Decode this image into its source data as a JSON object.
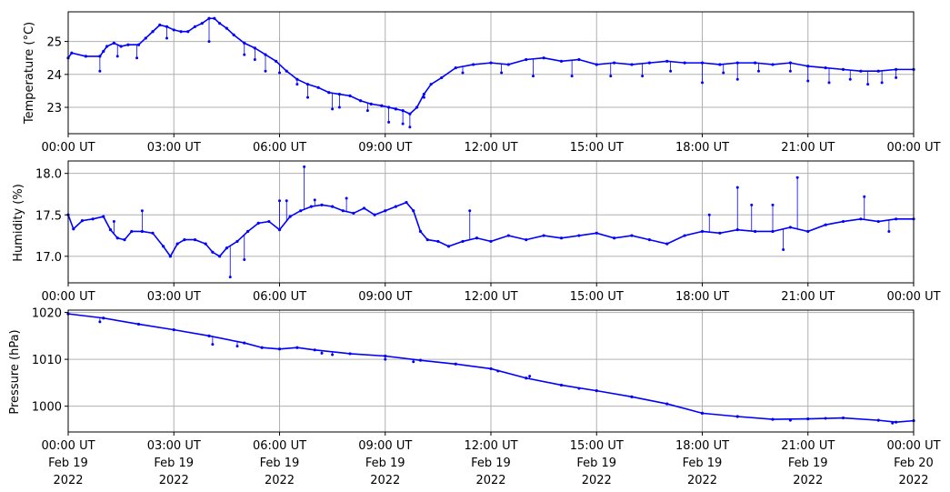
{
  "chart_data": [
    {
      "type": "line",
      "ylabel": "Temperature (°C)",
      "xlabel": "",
      "ylim": [
        22.2,
        25.9
      ],
      "yticks": [
        23,
        24,
        25
      ],
      "grid": true,
      "line_color": "#0000ff",
      "marker": "dot",
      "x_unit": "hours since 00:00 UT Feb 19 2022",
      "xticks": [
        0,
        3,
        6,
        9,
        12,
        15,
        18,
        21,
        24
      ],
      "xtick_labels": [
        "00:00 UT",
        "03:00 UT",
        "06:00 UT",
        "09:00 UT",
        "12:00 UT",
        "15:00 UT",
        "18:00 UT",
        "21:00 UT",
        "00:00 UT"
      ],
      "series": [
        {
          "x": [
            0,
            0.1,
            0.5,
            0.9,
            1.0,
            1.1,
            1.3,
            1.5,
            1.7,
            2.0,
            2.2,
            2.4,
            2.6,
            2.8,
            3.0,
            3.2,
            3.4,
            3.6,
            3.8,
            4.0,
            4.15,
            4.3,
            4.5,
            4.7,
            5.0,
            5.3,
            5.6,
            5.9,
            6.2,
            6.5,
            6.8,
            7.1,
            7.4,
            7.7,
            8.0,
            8.3,
            8.6,
            8.9,
            9.1,
            9.3,
            9.5,
            9.7,
            9.9,
            10.1,
            10.3,
            10.6,
            11.0,
            11.5,
            12.0,
            12.5,
            13.0,
            13.5,
            14.0,
            14.5,
            15.0,
            15.5,
            16.0,
            16.5,
            17.0,
            17.5,
            18.0,
            18.5,
            19.0,
            19.5,
            20.0,
            20.5,
            21.0,
            21.5,
            22.0,
            22.5,
            23.0,
            23.5,
            24.0
          ],
          "y": [
            24.5,
            24.65,
            24.55,
            24.55,
            24.7,
            24.85,
            24.95,
            24.85,
            24.9,
            24.9,
            25.1,
            25.3,
            25.5,
            25.45,
            25.35,
            25.3,
            25.3,
            25.45,
            25.55,
            25.7,
            25.7,
            25.55,
            25.4,
            25.2,
            24.95,
            24.8,
            24.6,
            24.4,
            24.1,
            23.85,
            23.7,
            23.6,
            23.45,
            23.4,
            23.35,
            23.2,
            23.1,
            23.05,
            23.0,
            22.95,
            22.9,
            22.8,
            23.0,
            23.4,
            23.7,
            23.9,
            24.2,
            24.3,
            24.35,
            24.3,
            24.45,
            24.5,
            24.4,
            24.45,
            24.3,
            24.35,
            24.3,
            24.35,
            24.4,
            24.35,
            24.35,
            24.3,
            24.35,
            24.35,
            24.3,
            24.35,
            24.25,
            24.2,
            24.15,
            24.1,
            24.1,
            24.15,
            24.15
          ]
        }
      ],
      "spikes": [
        [
          0.9,
          24.1
        ],
        [
          1.4,
          24.55
        ],
        [
          1.95,
          24.5
        ],
        [
          2.8,
          25.1
        ],
        [
          4.0,
          25.0
        ],
        [
          5.0,
          24.6
        ],
        [
          5.3,
          24.45
        ],
        [
          5.6,
          24.1
        ],
        [
          6.0,
          24.05
        ],
        [
          6.5,
          23.7
        ],
        [
          6.8,
          23.3
        ],
        [
          7.5,
          22.95
        ],
        [
          7.7,
          23.0
        ],
        [
          8.5,
          22.9
        ],
        [
          9.1,
          22.55
        ],
        [
          9.5,
          22.5
        ],
        [
          9.7,
          22.4
        ],
        [
          10.1,
          23.3
        ],
        [
          11.2,
          24.05
        ],
        [
          12.3,
          24.05
        ],
        [
          13.2,
          23.95
        ],
        [
          14.3,
          23.95
        ],
        [
          15.4,
          23.95
        ],
        [
          16.3,
          23.95
        ],
        [
          17.1,
          24.1
        ],
        [
          18.0,
          23.75
        ],
        [
          18.6,
          24.05
        ],
        [
          19.0,
          23.85
        ],
        [
          19.6,
          24.1
        ],
        [
          20.5,
          24.1
        ],
        [
          21.0,
          23.8
        ],
        [
          21.6,
          23.75
        ],
        [
          22.2,
          23.85
        ],
        [
          22.7,
          23.7
        ],
        [
          23.1,
          23.75
        ],
        [
          23.5,
          23.9
        ]
      ]
    },
    {
      "type": "line",
      "ylabel": "Humidity (%)",
      "xlabel": "",
      "ylim": [
        16.68,
        18.15
      ],
      "yticks": [
        17.0,
        17.5,
        18.0
      ],
      "ytick_labels": [
        "17.0",
        "17.5",
        "18.0"
      ],
      "grid": true,
      "line_color": "#0000ff",
      "marker": "dot",
      "xticks": [
        0,
        3,
        6,
        9,
        12,
        15,
        18,
        21,
        24
      ],
      "xtick_labels": [
        "00:00 UT",
        "03:00 UT",
        "06:00 UT",
        "09:00 UT",
        "12:00 UT",
        "15:00 UT",
        "18:00 UT",
        "21:00 UT",
        "00:00 UT"
      ],
      "series": [
        {
          "x": [
            0,
            0.15,
            0.4,
            0.7,
            1.0,
            1.2,
            1.4,
            1.6,
            1.8,
            2.1,
            2.4,
            2.7,
            2.9,
            3.1,
            3.3,
            3.6,
            3.9,
            4.1,
            4.3,
            4.5,
            4.8,
            5.1,
            5.4,
            5.7,
            6.0,
            6.3,
            6.6,
            6.9,
            7.2,
            7.5,
            7.8,
            8.1,
            8.4,
            8.7,
            9.0,
            9.3,
            9.6,
            9.8,
            10.0,
            10.2,
            10.5,
            10.8,
            11.2,
            11.6,
            12.0,
            12.5,
            13.0,
            13.5,
            14.0,
            14.5,
            15.0,
            15.5,
            16.0,
            16.5,
            17.0,
            17.5,
            18.0,
            18.5,
            19.0,
            19.5,
            20.0,
            20.5,
            21.0,
            21.5,
            22.0,
            22.5,
            23.0,
            23.5,
            24.0
          ],
          "y": [
            17.5,
            17.33,
            17.43,
            17.45,
            17.48,
            17.32,
            17.22,
            17.2,
            17.3,
            17.3,
            17.28,
            17.12,
            17.0,
            17.15,
            17.2,
            17.2,
            17.15,
            17.05,
            17.0,
            17.1,
            17.18,
            17.3,
            17.4,
            17.42,
            17.32,
            17.48,
            17.55,
            17.6,
            17.62,
            17.6,
            17.55,
            17.52,
            17.58,
            17.5,
            17.55,
            17.6,
            17.65,
            17.55,
            17.3,
            17.2,
            17.18,
            17.12,
            17.18,
            17.22,
            17.18,
            17.25,
            17.2,
            17.25,
            17.22,
            17.25,
            17.28,
            17.22,
            17.25,
            17.2,
            17.15,
            17.25,
            17.3,
            17.28,
            17.32,
            17.3,
            17.3,
            17.35,
            17.3,
            17.38,
            17.42,
            17.45,
            17.42,
            17.45,
            17.45
          ]
        }
      ],
      "spikes": [
        [
          1.3,
          17.42
        ],
        [
          2.1,
          17.55
        ],
        [
          4.6,
          16.75
        ],
        [
          5.0,
          16.96
        ],
        [
          6.0,
          17.67
        ],
        [
          6.2,
          17.67
        ],
        [
          6.7,
          18.08
        ],
        [
          7.0,
          17.68
        ],
        [
          7.9,
          17.7
        ],
        [
          11.4,
          17.55
        ],
        [
          18.2,
          17.5
        ],
        [
          19.0,
          17.83
        ],
        [
          19.4,
          17.62
        ],
        [
          20.0,
          17.62
        ],
        [
          20.3,
          17.08
        ],
        [
          20.7,
          17.95
        ],
        [
          22.6,
          17.72
        ],
        [
          23.3,
          17.3
        ]
      ]
    },
    {
      "type": "line",
      "ylabel": "Pressure (hPa)",
      "xlabel": "",
      "ylim": [
        994.5,
        1020.5
      ],
      "yticks": [
        1000,
        1010,
        1020
      ],
      "grid": true,
      "line_color": "#0000ff",
      "marker": "dot",
      "xticks": [
        0,
        3,
        6,
        9,
        12,
        15,
        18,
        21,
        24
      ],
      "xtick_labels": [
        [
          "00:00 UT",
          "Feb 19",
          "2022"
        ],
        [
          "03:00 UT",
          "Feb 19",
          "2022"
        ],
        [
          "06:00 UT",
          "Feb 19",
          "2022"
        ],
        [
          "09:00 UT",
          "Feb 19",
          "2022"
        ],
        [
          "12:00 UT",
          "Feb 19",
          "2022"
        ],
        [
          "15:00 UT",
          "Feb 19",
          "2022"
        ],
        [
          "18:00 UT",
          "Feb 19",
          "2022"
        ],
        [
          "21:00 UT",
          "Feb 19",
          "2022"
        ],
        [
          "00:00 UT",
          "Feb 20",
          "2022"
        ]
      ],
      "series": [
        {
          "x": [
            0,
            1,
            2,
            3,
            4,
            5,
            5.5,
            6,
            6.5,
            7,
            8,
            9,
            10,
            11,
            12,
            13,
            14,
            15,
            16,
            17,
            18,
            19,
            20,
            21,
            22,
            23,
            23.5,
            24
          ],
          "y": [
            1019.7,
            1018.8,
            1017.5,
            1016.3,
            1015.0,
            1013.5,
            1012.5,
            1012.2,
            1012.5,
            1012.0,
            1011.2,
            1010.7,
            1009.8,
            1009.0,
            1008.0,
            1006.0,
            1004.5,
            1003.3,
            1002.0,
            1000.5,
            998.5,
            997.8,
            997.2,
            997.3,
            997.5,
            997.0,
            996.6,
            996.9
          ]
        }
      ],
      "spikes": [
        [
          0.9,
          1018.0
        ],
        [
          4.1,
          1013.2
        ],
        [
          4.8,
          1012.8
        ],
        [
          7.2,
          1011.3
        ],
        [
          7.5,
          1011.0
        ],
        [
          9.0,
          1010.0
        ],
        [
          9.8,
          1009.5
        ],
        [
          12.2,
          1007.5
        ],
        [
          13.1,
          1006.4
        ],
        [
          14.5,
          1003.8
        ],
        [
          18.0,
          998.5
        ],
        [
          20.5,
          997.0
        ],
        [
          21.5,
          997.4
        ],
        [
          23.4,
          996.4
        ]
      ]
    }
  ]
}
